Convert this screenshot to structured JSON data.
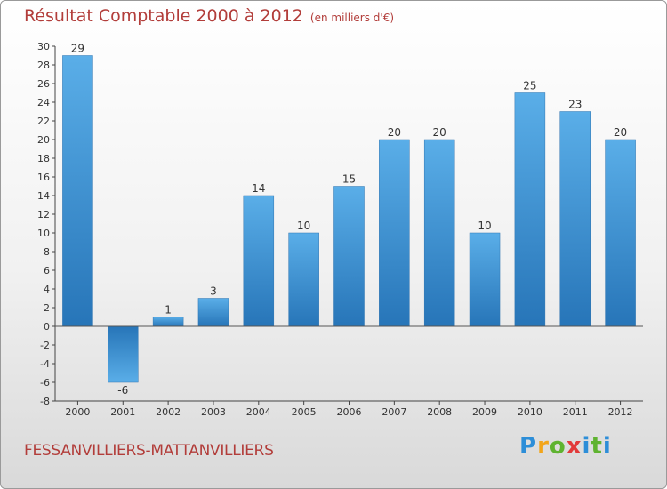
{
  "header": {
    "title": "Résultat Comptable 2000 à 2012",
    "subtitle": "(en milliers d'€)"
  },
  "footer": {
    "commune": "FESSANVILLIERS-MATTANVILLIERS",
    "brand": "Proxiti"
  },
  "colors": {
    "bar_light": "#5aaee8",
    "bar_dark": "#2775b8",
    "title": "#b23d3a"
  },
  "chart_data": {
    "type": "bar",
    "title": "Résultat Comptable 2000 à 2012",
    "subtitle": "(en milliers d'€)",
    "xlabel": "",
    "ylabel": "",
    "categories": [
      "2000",
      "2001",
      "2002",
      "2003",
      "2004",
      "2005",
      "2006",
      "2007",
      "2008",
      "2009",
      "2010",
      "2011",
      "2012"
    ],
    "values": [
      29,
      -6,
      1,
      3,
      14,
      10,
      15,
      20,
      20,
      10,
      25,
      23,
      20
    ],
    "ylim": [
      -8,
      30
    ],
    "yticks": [
      30,
      28,
      26,
      24,
      22,
      20,
      18,
      16,
      14,
      12,
      10,
      8,
      6,
      4,
      2,
      0,
      -2,
      -4,
      -6,
      -8
    ],
    "grid": false,
    "legend": "none"
  }
}
